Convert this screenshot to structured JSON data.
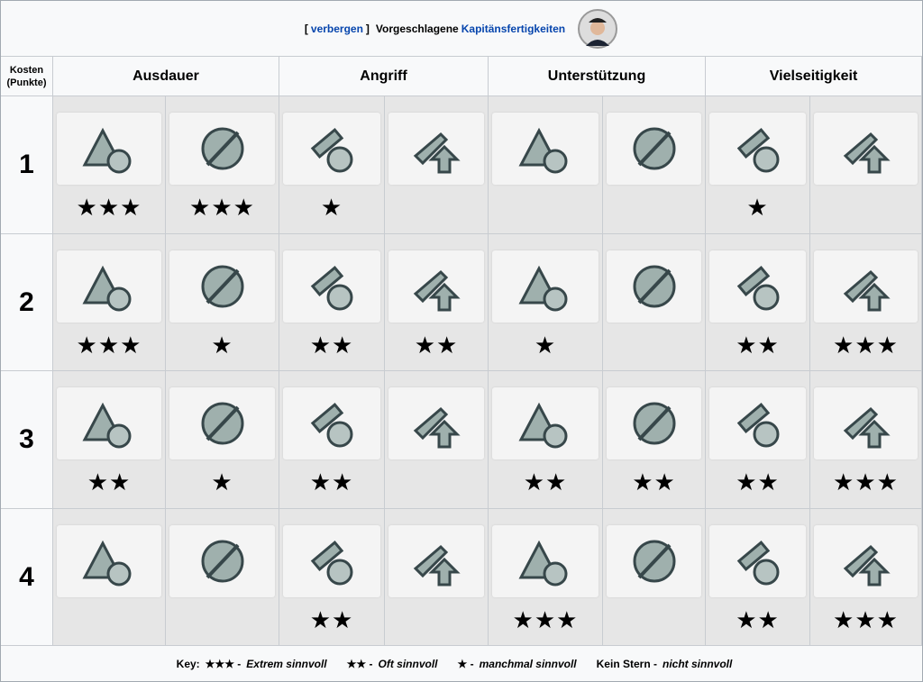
{
  "header": {
    "toggle_open": "[",
    "toggle_link": "verbergen",
    "toggle_close": "]",
    "title": "Vorgeschlagene",
    "title_link": "Kapitänsfertigkeiten"
  },
  "table": {
    "cost_header": "Kosten (Punkte)",
    "groups": [
      "Ausdauer",
      "Angriff",
      "Unterstützung",
      "Vielseitigkeit"
    ],
    "rows": [
      {
        "cost": "1",
        "stars": [
          "★★★",
          "★★★",
          "★",
          null,
          null,
          null,
          "★",
          null
        ]
      },
      {
        "cost": "2",
        "stars": [
          "★★★",
          "★",
          "★★",
          "★★",
          "★",
          null,
          "★★",
          "★★★"
        ]
      },
      {
        "cost": "3",
        "stars": [
          "★★",
          "★",
          "★★",
          null,
          "★★",
          "★★",
          "★★",
          "★★★"
        ]
      },
      {
        "cost": "4",
        "stars": [
          null,
          null,
          "★★",
          null,
          "★★★",
          null,
          "★★",
          "★★★"
        ]
      }
    ]
  },
  "key": {
    "title": "Key:",
    "items": [
      {
        "symbol": "★★★ -",
        "text": "Extrem sinnvoll"
      },
      {
        "symbol": "★★ -",
        "text": "Oft sinnvoll"
      },
      {
        "symbol": "★ -",
        "text": "manchmal sinnvoll"
      },
      {
        "symbol": "Kein Stern -",
        "text": "nicht sinnvoll"
      }
    ]
  }
}
